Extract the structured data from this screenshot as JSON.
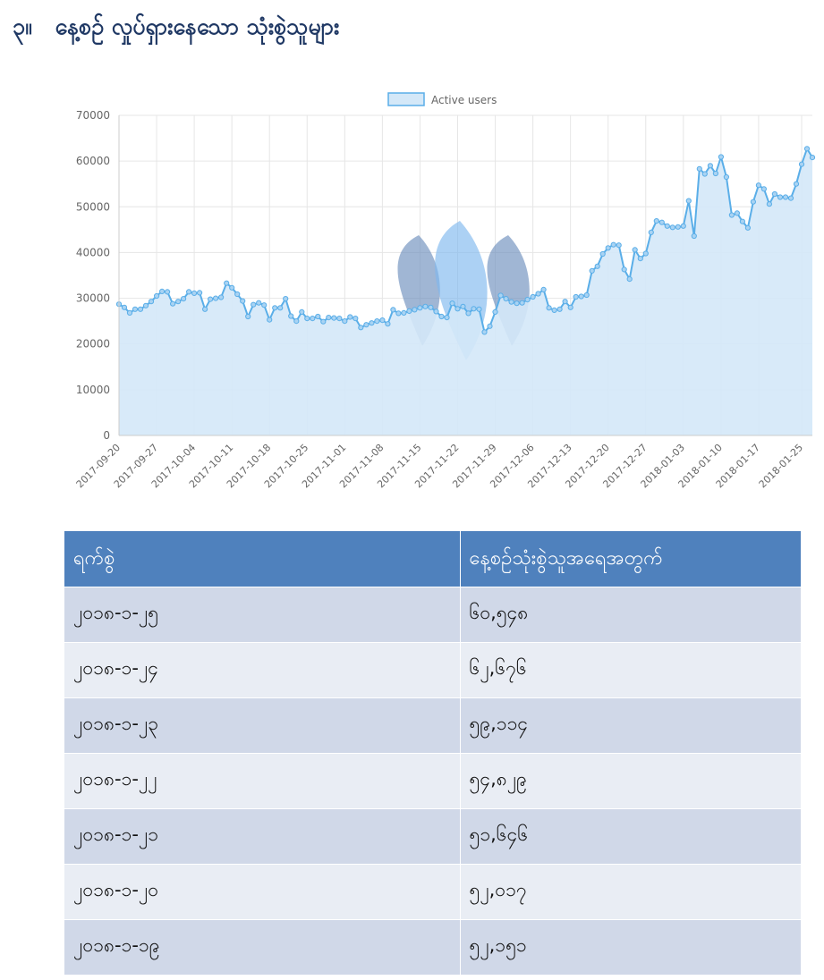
{
  "heading": {
    "number": "၃။",
    "title": "နေ့စဉ် လှုပ်ရှားနေသော သုံးစွဲသူများ"
  },
  "chart_data": {
    "type": "area",
    "title": "",
    "xlabel": "",
    "ylabel": "",
    "ylim": [
      0,
      70000
    ],
    "yticks": [
      0,
      10000,
      20000,
      30000,
      40000,
      50000,
      60000,
      70000
    ],
    "grid": true,
    "legend_position": "top-center",
    "fill_color": "#d4e8f8",
    "line_color": "#5aaee8",
    "x_start": "2017-09-20",
    "x_tick_labels": [
      "2017-09-20",
      "2017-09-27",
      "2017-10-04",
      "2017-10-11",
      "2017-10-18",
      "2017-10-25",
      "2017-11-01",
      "2017-11-08",
      "2017-11-15",
      "2017-11-22",
      "2017-11-29",
      "2017-12-06",
      "2017-12-13",
      "2017-12-20",
      "2017-12-27",
      "2018-01-03",
      "2018-01-10",
      "2018-01-17",
      "2018-01-25"
    ],
    "series": [
      {
        "name": "Active users",
        "values": [
          28700,
          28000,
          26800,
          27600,
          27600,
          28400,
          29300,
          30500,
          31500,
          31400,
          28800,
          29300,
          29900,
          31400,
          31100,
          31200,
          27600,
          29800,
          30000,
          30200,
          33300,
          32300,
          30900,
          29400,
          26000,
          28600,
          29000,
          28500,
          25300,
          27900,
          27900,
          29900,
          26100,
          25000,
          27000,
          25600,
          25600,
          26000,
          24900,
          25800,
          25700,
          25600,
          25000,
          25900,
          25600,
          23600,
          24200,
          24600,
          25000,
          25200,
          24400,
          27500,
          26700,
          26800,
          27200,
          27500,
          27900,
          28200,
          28000,
          27100,
          26000,
          25800,
          28900,
          27700,
          28200,
          26700,
          27700,
          27600,
          22600,
          23900,
          27000,
          30600,
          29900,
          29200,
          28900,
          29000,
          29700,
          30300,
          31000,
          31900,
          27900,
          27400,
          27600,
          29300,
          28000,
          30300,
          30400,
          30700,
          36000,
          37000,
          39700,
          41000,
          41700,
          41600,
          36300,
          34200,
          40600,
          38700,
          39800,
          44400,
          46900,
          46600,
          45800,
          45500,
          45600,
          45800,
          51300,
          43600,
          58300,
          57200,
          59000,
          57300,
          60900,
          56500,
          48200,
          48600,
          46800,
          45400,
          51100,
          54700,
          53900,
          50600,
          52800,
          52100,
          52100,
          51900,
          55000,
          59300,
          62700,
          60800
        ]
      }
    ]
  },
  "table": {
    "headers": [
      "ရက်စွဲ",
      "နေ့စဉ်သုံးစွဲသူအရေအတွက်"
    ],
    "rows": [
      [
        "၂၀၁၈-၁-၂၅",
        "၆၀,၅၄၈"
      ],
      [
        "၂၀၁၈-၁-၂၄",
        "၆၂,၆၇၆"
      ],
      [
        "၂၀၁၈-၁-၂၃",
        "၅၉,၁၁၄"
      ],
      [
        "၂၀၁၈-၁-၂၂",
        "၅၄,၈၂၉"
      ],
      [
        "၂၀၁၈-၁-၂၁",
        "၅၁,၆၄၆"
      ],
      [
        "၂၀၁၈-၁-၂၀",
        "၅၂,၀၁၇"
      ],
      [
        "၂၀၁၈-၁-၁၉",
        "၅၂,၁၅၁"
      ]
    ]
  }
}
